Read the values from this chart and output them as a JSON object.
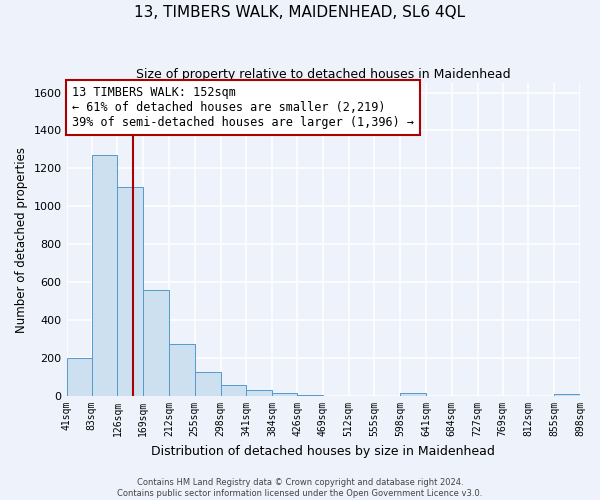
{
  "title": "13, TIMBERS WALK, MAIDENHEAD, SL6 4QL",
  "subtitle": "Size of property relative to detached houses in Maidenhead",
  "xlabel": "Distribution of detached houses by size in Maidenhead",
  "ylabel": "Number of detached properties",
  "footer_line1": "Contains HM Land Registry data © Crown copyright and database right 2024.",
  "footer_line2": "Contains public sector information licensed under the Open Government Licence v3.0.",
  "bar_edges": [
    41,
    83,
    126,
    169,
    212,
    255,
    298,
    341,
    384,
    426,
    469,
    512,
    555,
    598,
    641,
    684,
    727,
    769,
    812,
    855,
    898
  ],
  "bar_heights": [
    200,
    1270,
    1100,
    560,
    275,
    125,
    60,
    30,
    15,
    5,
    0,
    0,
    0,
    15,
    0,
    0,
    0,
    0,
    0,
    10
  ],
  "bar_color": "#cce0f0",
  "bar_edgecolor": "#5599cc",
  "vline_x": 152,
  "vline_color": "#aa0000",
  "annotation_text": "13 TIMBERS WALK: 152sqm\n← 61% of detached houses are smaller (2,219)\n39% of semi-detached houses are larger (1,396) →",
  "annotation_boxcolor": "white",
  "annotation_edgecolor": "#aa0000",
  "ylim": [
    0,
    1650
  ],
  "yticks": [
    0,
    200,
    400,
    600,
    800,
    1000,
    1200,
    1400,
    1600
  ],
  "xlim": [
    41,
    898
  ],
  "bg_color": "#eef2fb",
  "grid_color": "#ffffff",
  "title_fontsize": 11,
  "subtitle_fontsize": 9,
  "tick_labels": [
    "41sqm",
    "83sqm",
    "126sqm",
    "169sqm",
    "212sqm",
    "255sqm",
    "298sqm",
    "341sqm",
    "384sqm",
    "426sqm",
    "469sqm",
    "512sqm",
    "555sqm",
    "598sqm",
    "641sqm",
    "684sqm",
    "727sqm",
    "769sqm",
    "812sqm",
    "855sqm",
    "898sqm"
  ]
}
